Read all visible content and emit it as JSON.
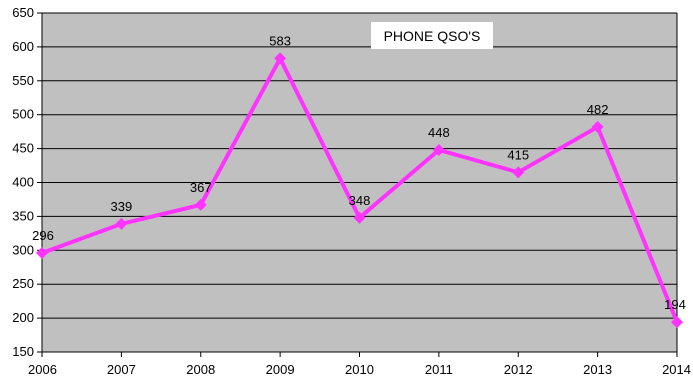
{
  "chart_data": {
    "type": "line",
    "title": "PHONE QSO'S",
    "xlabel": "",
    "ylabel": "",
    "categories": [
      "2006",
      "2007",
      "2008",
      "2009",
      "2010",
      "2011",
      "2012",
      "2013",
      "2014"
    ],
    "series": [
      {
        "values": [
          296,
          339,
          367,
          583,
          348,
          448,
          415,
          482,
          194
        ],
        "color": "#ff33ff",
        "marker": "diamond"
      }
    ],
    "ylim": [
      150,
      650
    ],
    "yticks": [
      150,
      200,
      250,
      300,
      350,
      400,
      450,
      500,
      550,
      600,
      650
    ],
    "grid": true,
    "legend": "none",
    "data_labels": true,
    "colors": {
      "plot_background": "#c0c0c0",
      "gridline": "#000000",
      "title_box": "#ffffff"
    }
  }
}
